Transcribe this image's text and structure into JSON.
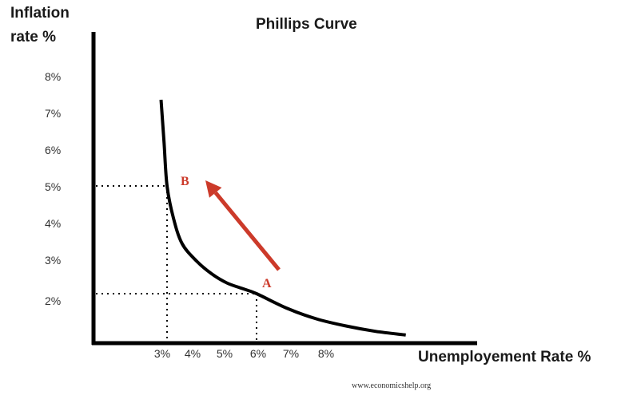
{
  "chart_data": {
    "type": "line",
    "title": "Phillips Curve",
    "ylabel_line1": "Inflation",
    "ylabel_line2": "rate %",
    "xlabel": "Unemployement Rate %",
    "y_ticks": [
      "2%",
      "3%",
      "4%",
      "5%",
      "6%",
      "7%",
      "8%"
    ],
    "x_ticks": [
      "3%",
      "4%",
      "5%",
      "6%",
      "7%",
      "8%"
    ],
    "series": [
      {
        "x": [
          2.8,
          2.9,
          3.0,
          3.2,
          3.5,
          4.0,
          4.5,
          5.0,
          5.5,
          6.0,
          7.0,
          8.0,
          9.0,
          10.0,
          11.0
        ],
        "y": [
          7.4,
          6.2,
          5.0,
          4.15,
          3.4,
          2.9,
          2.55,
          2.3,
          2.15,
          2.0,
          1.6,
          1.3,
          1.1,
          0.95,
          0.85
        ]
      }
    ],
    "points": [
      {
        "label": "B",
        "x": 3.0,
        "y": 5.0
      },
      {
        "label": "A",
        "x": 6.0,
        "y": 2.0
      }
    ],
    "arrow": {
      "from": "A",
      "to": "B"
    },
    "grid": false
  },
  "colors": {
    "curve": "#000000",
    "accent": "#cc3a2a",
    "axis": "#000000"
  },
  "source_text": "www.economicshelp.org"
}
